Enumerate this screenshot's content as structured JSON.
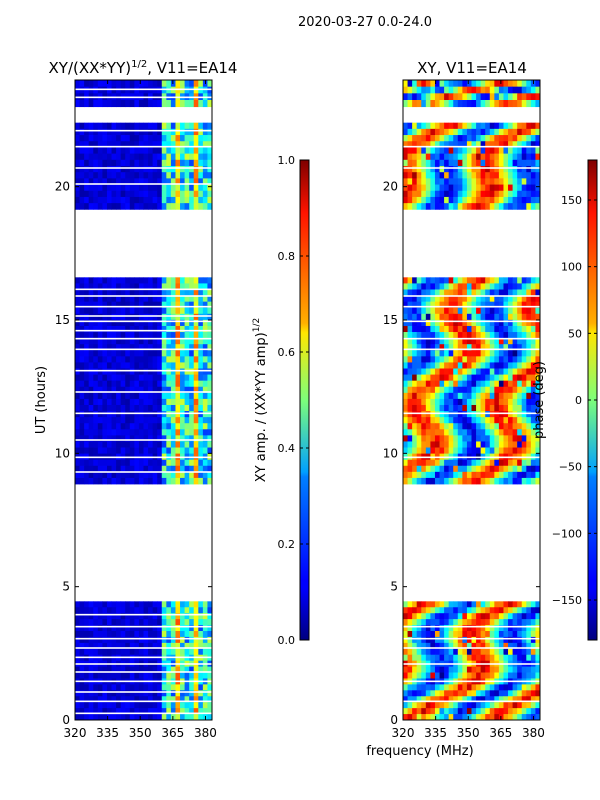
{
  "suptitle": "2020-03-27 0.0-24.0",
  "xlabel_shared": "frequency (MHz)",
  "chart_data": [
    {
      "type": "heatmap",
      "title": "XY/(XX*YY)",
      "title_sup": "1/2",
      "title_suffix": ", V11=EA14",
      "xlabel": "frequency (MHz)",
      "ylabel": "UT (hours)",
      "xlim": [
        320,
        383
      ],
      "ylim": [
        0,
        24
      ],
      "xticks": [
        320,
        335,
        350,
        365,
        380
      ],
      "yticks": [
        0,
        5,
        10,
        15,
        20
      ],
      "colorbar": {
        "label": "XY amp. / (XX*YY amp)",
        "label_sup": "1/2",
        "range": [
          0.0,
          1.0
        ],
        "ticks": [
          "0.0",
          "0.2",
          "0.4",
          "0.6",
          "0.8",
          "1.0"
        ],
        "colormap": "jet"
      },
      "data_blocks_hours": [
        [
          0.0,
          4.45
        ],
        [
          8.85,
          16.6
        ],
        [
          19.15,
          22.4
        ],
        [
          23.0,
          24.0
        ]
      ],
      "gap_lines_hours": [
        0.25,
        0.7,
        1.05,
        1.45,
        1.8,
        2.1,
        2.35,
        2.7,
        3.05,
        3.5,
        3.95,
        9.3,
        9.85,
        10.5,
        11.5,
        12.3,
        13.1,
        13.9,
        14.3,
        14.6,
        14.95,
        15.15,
        15.5,
        15.9,
        16.15,
        20.1,
        20.7,
        21.5,
        22.1,
        23.35,
        23.65
      ],
      "bright_band_mhz": [
        360,
        383
      ],
      "low_band_value": 0.1,
      "high_band_value": 0.45
    },
    {
      "type": "heatmap",
      "title": "XY, V11=EA14",
      "xlabel": "frequency (MHz)",
      "ylabel": "",
      "xlim": [
        320,
        383
      ],
      "ylim": [
        0,
        24
      ],
      "xticks": [
        320,
        335,
        350,
        365,
        380
      ],
      "yticks": [
        0,
        5,
        10,
        15,
        20
      ],
      "colorbar": {
        "label": "phase (deg)",
        "range": [
          -180,
          180
        ],
        "ticks": [
          "−150",
          "−100",
          "−50",
          "0",
          "50",
          "100",
          "150"
        ],
        "colormap": "jet"
      },
      "data_blocks_hours": [
        [
          0.0,
          4.45
        ],
        [
          8.85,
          16.6
        ],
        [
          19.15,
          22.4
        ],
        [
          23.0,
          24.0
        ]
      ],
      "gap_lines_hours": [
        0.7,
        1.45,
        2.1,
        2.7,
        3.05,
        3.5,
        9.85,
        11.5,
        13.9,
        14.3,
        14.95,
        15.5,
        15.9,
        20.7,
        21.5
      ]
    }
  ]
}
